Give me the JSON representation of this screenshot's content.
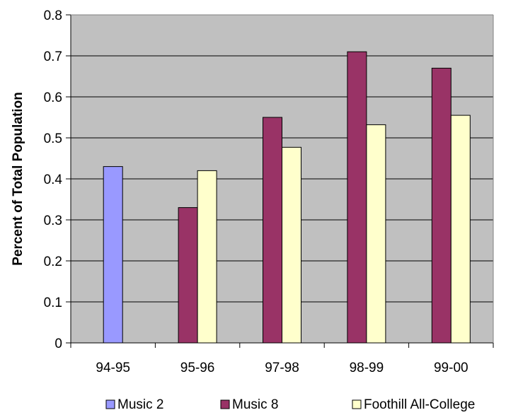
{
  "chart_data": {
    "type": "bar",
    "title": "",
    "xlabel": "",
    "ylabel": "Percent of Total Population",
    "categories": [
      "94-95",
      "95-96",
      "97-98",
      "98-99",
      "99-00"
    ],
    "series": [
      {
        "name": "Music 2",
        "color": "#9999ff",
        "values": [
          0.43,
          null,
          null,
          null,
          null
        ]
      },
      {
        "name": "Music 8",
        "color": "#993366",
        "values": [
          null,
          0.33,
          0.55,
          0.71,
          0.67
        ]
      },
      {
        "name": "Foothill All-College",
        "color": "#ffffcc",
        "values": [
          null,
          0.42,
          0.477,
          0.532,
          0.555
        ]
      }
    ],
    "ylim": [
      0,
      0.8
    ],
    "yticks": [
      "0",
      "0.1",
      "0.2",
      "0.3",
      "0.4",
      "0.5",
      "0.6",
      "0.7",
      "0.8"
    ],
    "grid": true,
    "plot_background": "#c0c0c0",
    "legend_position": "bottom"
  }
}
